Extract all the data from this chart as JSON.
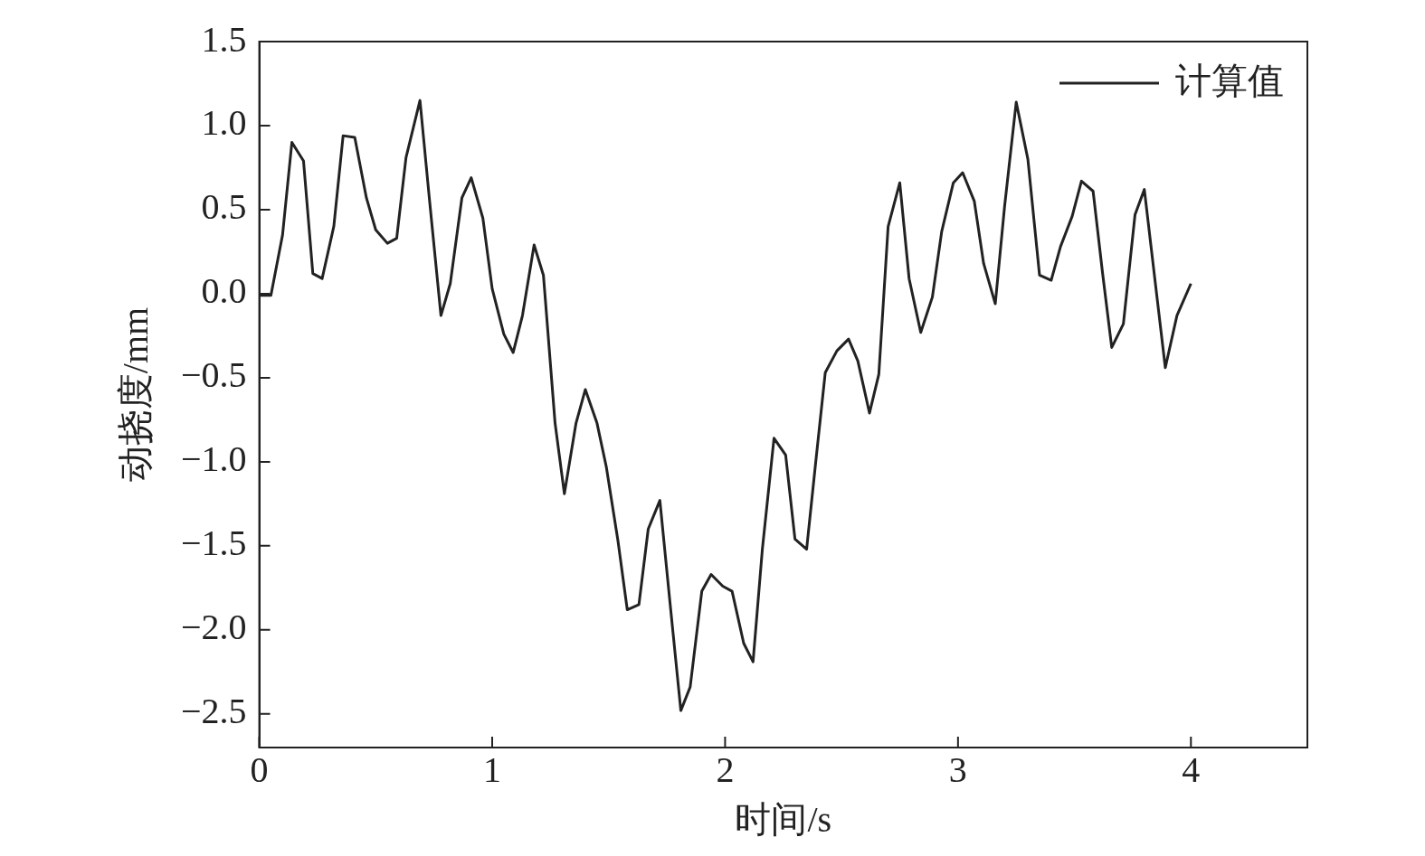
{
  "chart_data": {
    "type": "line",
    "xlabel": "时间/s",
    "ylabel": "动挠度/mm",
    "xlim": [
      0,
      4.5
    ],
    "xticks": [
      0,
      1,
      2,
      3,
      4
    ],
    "ylim": [
      -2.7,
      1.5
    ],
    "yticks": [
      {
        "value": -2.5,
        "label": "−2.5"
      },
      {
        "value": -2,
        "label": "−2.0"
      },
      {
        "value": -1.5,
        "label": "−1.5"
      },
      {
        "value": -1,
        "label": "−1.0"
      },
      {
        "value": -0.5,
        "label": "−0.5"
      },
      {
        "value": 0,
        "label": "0.0"
      },
      {
        "value": 0.5,
        "label": "0.5"
      },
      {
        "value": 1,
        "label": "1.0"
      },
      {
        "value": 1.5,
        "label": "1.5"
      }
    ],
    "grid": false,
    "legend": "top right",
    "marker": "none",
    "line_style": "solid",
    "x": [
      0,
      0.05,
      0.1,
      0.14,
      0.19,
      0.23,
      0.27,
      0.32,
      0.36,
      0.41,
      0.46,
      0.5,
      0.55,
      0.59,
      0.63,
      0.69,
      0.73,
      0.78,
      0.82,
      0.87,
      0.91,
      0.96,
      1.0,
      1.05,
      1.09,
      1.13,
      1.18,
      1.22,
      1.27,
      1.31,
      1.36,
      1.4,
      1.45,
      1.49,
      1.54,
      1.58,
      1.63,
      1.67,
      1.72,
      1.76,
      1.81,
      1.85,
      1.9,
      1.94,
      1.99,
      2.03,
      2.08,
      2.12,
      2.16,
      2.21,
      2.26,
      2.3,
      2.35,
      2.39,
      2.43,
      2.48,
      2.53,
      2.57,
      2.62,
      2.66,
      2.7,
      2.75,
      2.79,
      2.84,
      2.89,
      2.93,
      2.98,
      3.02,
      3.07,
      3.11,
      3.16,
      3.2,
      3.25,
      3.3,
      3.35,
      3.4,
      3.44,
      3.49,
      3.53,
      3.58,
      3.62,
      3.66,
      3.71,
      3.76,
      3.8,
      3.85,
      3.89,
      3.94,
      4.0
    ],
    "series": [
      {
        "name": "计算值",
        "color": "#222222",
        "values": [
          -0.01,
          -0.01,
          0.35,
          0.9,
          0.79,
          0.12,
          0.09,
          0.4,
          0.94,
          0.93,
          0.57,
          0.38,
          0.3,
          0.33,
          0.81,
          1.15,
          0.57,
          -0.13,
          0.06,
          0.57,
          0.69,
          0.45,
          0.03,
          -0.24,
          -0.35,
          -0.13,
          0.29,
          0.11,
          -0.77,
          -1.19,
          -0.77,
          -0.57,
          -0.77,
          -1.03,
          -1.47,
          -1.88,
          -1.85,
          -1.4,
          -1.23,
          -1.79,
          -2.48,
          -2.34,
          -1.77,
          -1.67,
          -1.74,
          -1.77,
          -2.08,
          -2.19,
          -1.52,
          -0.86,
          -0.96,
          -1.46,
          -1.52,
          -0.99,
          -0.47,
          -0.34,
          -0.27,
          -0.4,
          -0.71,
          -0.48,
          0.4,
          0.66,
          0.09,
          -0.23,
          -0.02,
          0.37,
          0.66,
          0.72,
          0.55,
          0.18,
          -0.06,
          0.52,
          1.14,
          0.8,
          0.11,
          0.08,
          0.28,
          0.46,
          0.67,
          0.61,
          0.13,
          -0.32,
          -0.18,
          0.47,
          0.62,
          0.03,
          -0.44,
          -0.13,
          0.06
        ]
      }
    ]
  }
}
